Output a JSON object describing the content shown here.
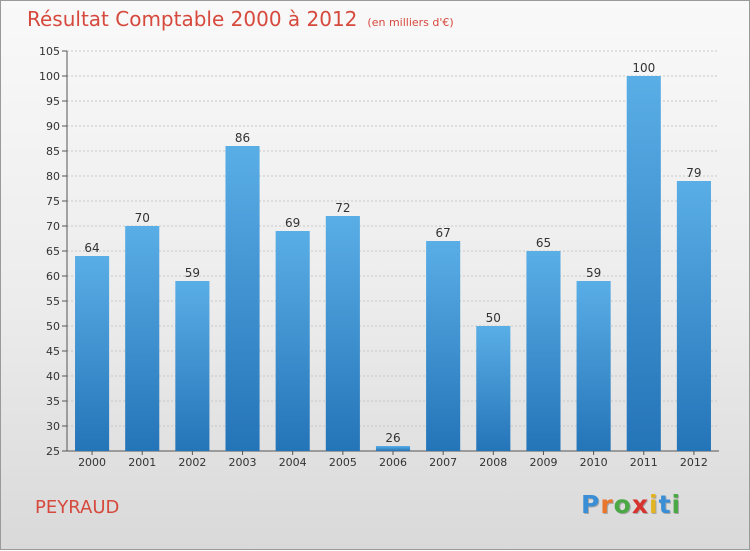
{
  "title": "Résultat Comptable 2000 à 2012",
  "subtitle": "(en milliers d'€)",
  "commune": "PEYRAUD",
  "brand": {
    "letters": [
      "P",
      "r",
      "o",
      "x",
      "i",
      "t",
      "i"
    ],
    "colors": [
      "#3a8ed6",
      "#e8762d",
      "#4aa845",
      "#d6332f",
      "#e3b420",
      "#3a8ed6",
      "#4aa845"
    ]
  },
  "colors": {
    "bar_top": "#5aaee6",
    "bar_bottom": "#2474b8",
    "title": "#d6493d",
    "grid": "#c8c8c8"
  },
  "chart_data": {
    "type": "bar",
    "categories": [
      "2000",
      "2001",
      "2002",
      "2003",
      "2004",
      "2005",
      "2006",
      "2007",
      "2008",
      "2009",
      "2010",
      "2011",
      "2012"
    ],
    "values": [
      64,
      70,
      59,
      86,
      69,
      72,
      26,
      67,
      50,
      65,
      59,
      100,
      79
    ],
    "data_labels": [
      "64",
      "70",
      "59",
      "86",
      "69",
      "72",
      "26",
      "67",
      "50",
      "65",
      "59",
      "100",
      "79"
    ],
    "ylim": [
      25,
      105
    ],
    "yticks": [
      25,
      30,
      35,
      40,
      45,
      50,
      55,
      60,
      65,
      70,
      75,
      80,
      85,
      90,
      95,
      100,
      105
    ],
    "grid": true,
    "legend": "none"
  }
}
